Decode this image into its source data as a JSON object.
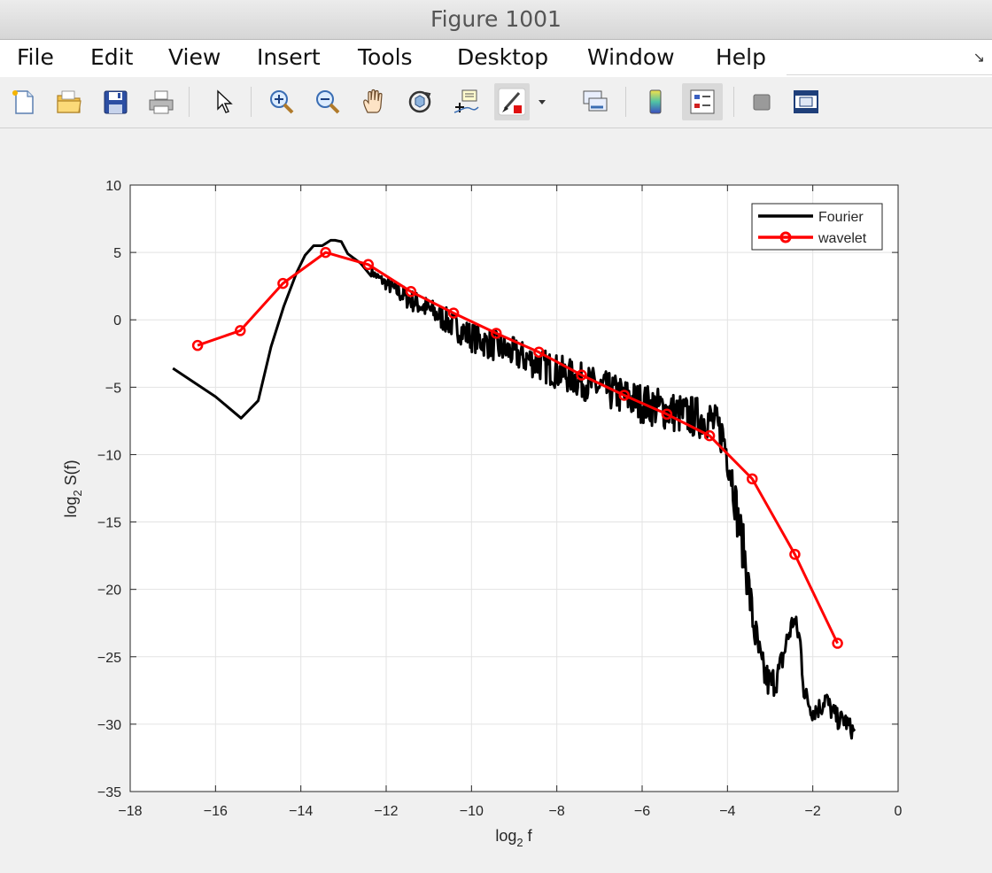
{
  "window": {
    "title": "Figure 1001"
  },
  "menu": {
    "items": [
      "File",
      "Edit",
      "View",
      "Insert",
      "Tools",
      "Desktop",
      "Window",
      "Help"
    ]
  },
  "toolbar": {
    "buttons": [
      {
        "icon": "new-figure-icon"
      },
      {
        "icon": "open-file-icon"
      },
      {
        "icon": "save-icon"
      },
      {
        "icon": "print-icon"
      },
      {
        "icon": "edit-plot-arrow-icon"
      },
      {
        "icon": "zoom-in-icon"
      },
      {
        "icon": "zoom-out-icon"
      },
      {
        "icon": "pan-hand-icon"
      },
      {
        "icon": "rotate-3d-icon"
      },
      {
        "icon": "data-cursor-icon"
      },
      {
        "icon": "brush-icon"
      },
      {
        "icon": "brush-dropdown-icon"
      },
      {
        "icon": "link-plot-icon"
      },
      {
        "icon": "insert-colorbar-icon"
      },
      {
        "icon": "insert-legend-icon"
      },
      {
        "icon": "hide-plot-tools-icon"
      },
      {
        "icon": "show-plot-tools-icon"
      }
    ]
  },
  "chart_data": {
    "type": "line",
    "title": "",
    "xlabel_base": "log",
    "xlabel_sub": "2",
    "xlabel_rest": " f",
    "ylabel_base": "log",
    "ylabel_sub": "2",
    "ylabel_rest": " S(f)",
    "xlim": [
      -18,
      0
    ],
    "ylim": [
      -35,
      10
    ],
    "xticks": [
      -18,
      -16,
      -14,
      -12,
      -10,
      -8,
      -6,
      -4,
      -2,
      0
    ],
    "yticks": [
      10,
      5,
      0,
      -5,
      -10,
      -15,
      -20,
      -25,
      -30,
      -35
    ],
    "grid": true,
    "legend_position": "top-right",
    "series": [
      {
        "name": "Fourier",
        "color": "#000000",
        "marker": "none",
        "x": [
          -17.0,
          -16.0,
          -15.4,
          -15.0,
          -14.7,
          -14.4,
          -14.1,
          -13.9,
          -13.7,
          -13.5,
          -13.3,
          -13.2,
          -13.05,
          -12.9,
          -12.6,
          -12.3,
          -12.0,
          -11.5,
          -11.0,
          -10.5,
          -10.0,
          -9.0,
          -8.0,
          -7.0,
          -6.0,
          -5.0,
          -4.4,
          -4.1,
          -3.9,
          -3.75,
          -3.6,
          -3.5,
          -3.4,
          -3.2,
          -3.0,
          -2.8,
          -2.6,
          -2.45,
          -2.3,
          -2.2,
          -2.0,
          -1.8,
          -1.7,
          -1.6,
          -1.4,
          -1.25,
          -1.15,
          -1.0
        ],
        "y": [
          -3.6,
          -5.7,
          -7.3,
          -6.0,
          -2.0,
          1.0,
          3.5,
          4.8,
          5.5,
          5.5,
          5.9,
          5.9,
          5.8,
          4.9,
          4.2,
          3.5,
          2.8,
          1.8,
          1.0,
          0.0,
          -1.0,
          -2.2,
          -3.5,
          -4.7,
          -5.8,
          -6.7,
          -7.0,
          -8.2,
          -11.0,
          -14.5,
          -17.0,
          -19.5,
          -22.0,
          -25.5,
          -26.8,
          -26.0,
          -23.5,
          -22.0,
          -23.5,
          -27.5,
          -28.8,
          -28.5,
          -27.8,
          -28.6,
          -29.5,
          -29.5,
          -30.0,
          -30.5
        ],
        "noise_band": [
          {
            "x": -12.3,
            "amp": 0.3
          },
          {
            "x": -11.5,
            "amp": 0.8
          },
          {
            "x": -10.0,
            "amp": 1.1
          },
          {
            "x": -8.0,
            "amp": 1.3
          },
          {
            "x": -6.0,
            "amp": 1.5
          },
          {
            "x": -4.2,
            "amp": 1.6
          },
          {
            "x": -3.6,
            "amp": 1.8
          },
          {
            "x": -2.5,
            "amp": 0.9
          },
          {
            "x": -1.0,
            "amp": 0.7
          }
        ]
      },
      {
        "name": "wavelet",
        "color": "#ff0000",
        "marker": "circle",
        "x": [
          -16.42,
          -15.42,
          -14.42,
          -13.42,
          -12.42,
          -11.42,
          -10.42,
          -9.42,
          -8.42,
          -7.42,
          -6.42,
          -5.42,
          -4.42,
          -3.42,
          -2.42,
          -1.42
        ],
        "y": [
          -1.9,
          -0.8,
          2.7,
          5.0,
          4.1,
          2.1,
          0.5,
          -1.0,
          -2.4,
          -4.1,
          -5.6,
          -7.0,
          -8.6,
          -11.8,
          -17.4,
          -24.0
        ]
      }
    ]
  }
}
